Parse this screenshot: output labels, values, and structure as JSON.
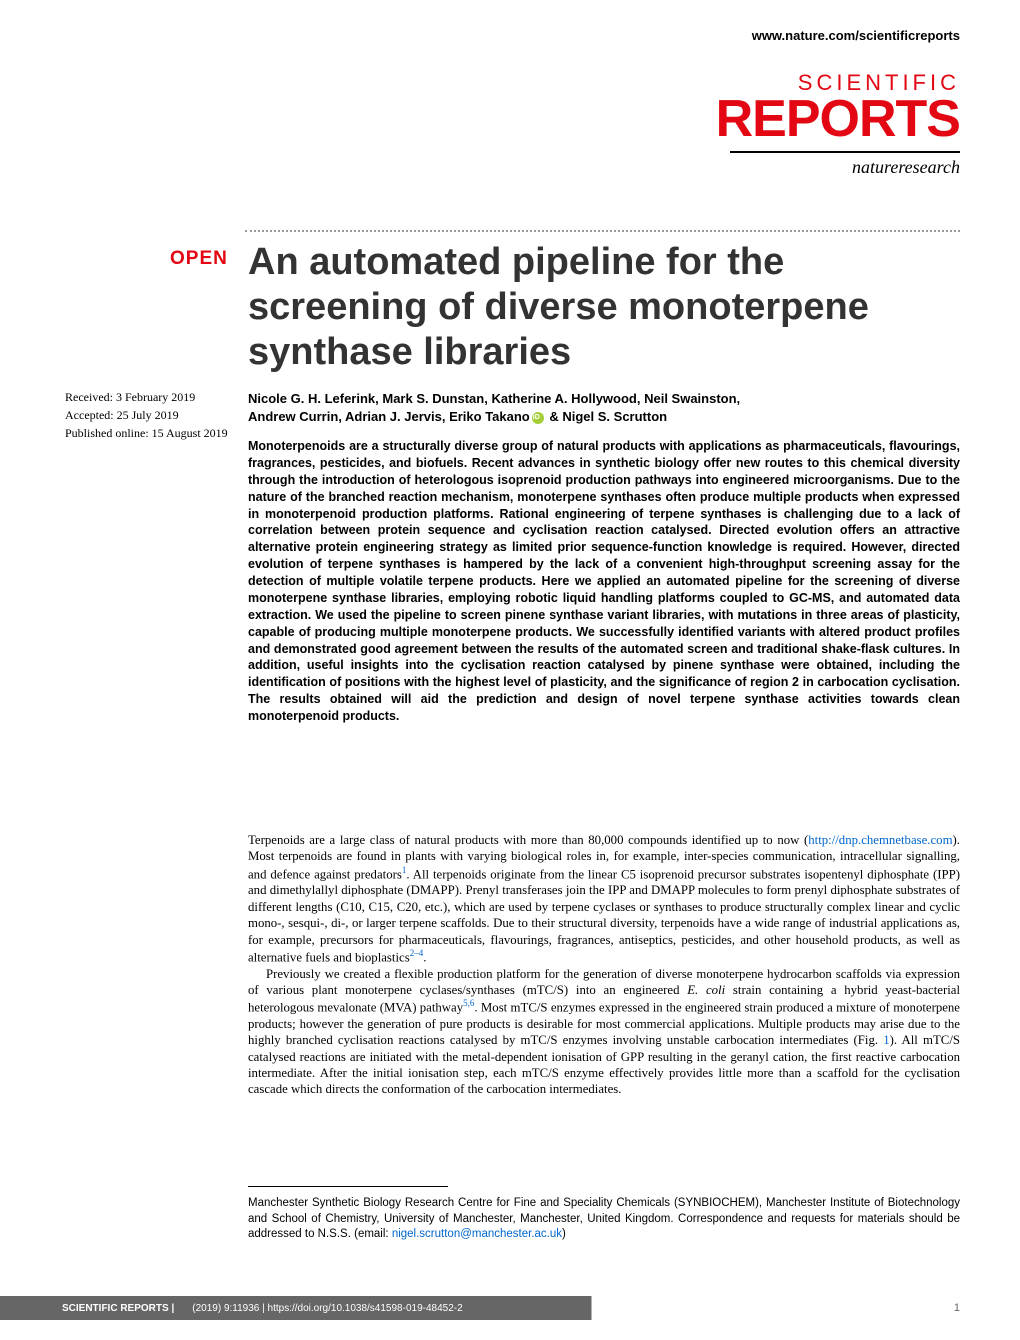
{
  "header": {
    "url": "www.nature.com/scientificreports"
  },
  "journal": {
    "line1": "SCIENTIFIC",
    "line2": "REPORTS",
    "publisher": "natureresearch"
  },
  "badge": "OPEN",
  "title": "An automated pipeline for the screening of diverse monoterpene synthase libraries",
  "dates": {
    "received": "Received: 3 February 2019",
    "accepted": "Accepted: 25 July 2019",
    "published": "Published online: 15 August 2019"
  },
  "authors": {
    "line1": "Nicole G. H. Leferink, Mark S. Dunstan, Katherine A. Hollywood, Neil Swainston,",
    "line2a": "Andrew Currin, Adrian J. Jervis, Eriko Takano",
    "line2b": " & Nigel S. Scrutton"
  },
  "abstract": "Monoterpenoids are a structurally diverse group of natural products with applications as pharmaceuticals, flavourings, fragrances, pesticides, and biofuels. Recent advances in synthetic biology offer new routes to this chemical diversity through the introduction of heterologous isoprenoid production pathways into engineered microorganisms. Due to the nature of the branched reaction mechanism, monoterpene synthases often produce multiple products when expressed in monoterpenoid production platforms. Rational engineering of terpene synthases is challenging due to a lack of correlation between protein sequence and cyclisation reaction catalysed. Directed evolution offers an attractive alternative protein engineering strategy as limited prior sequence-function knowledge is required. However, directed evolution of terpene synthases is hampered by the lack of a convenient high-throughput screening assay for the detection of multiple volatile terpene products. Here we applied an automated pipeline for the screening of diverse monoterpene synthase libraries, employing robotic liquid handling platforms coupled to GC-MS, and automated data extraction. We used the pipeline to screen pinene synthase variant libraries, with mutations in three areas of plasticity, capable of producing multiple monoterpene products. We successfully identified variants with altered product profiles and demonstrated good agreement between the results of the automated screen and traditional shake-flask cultures. In addition, useful insights into the cyclisation reaction catalysed by pinene synthase were obtained, including the identification of positions with the highest level of plasticity, and the significance of region 2 in carbocation cyclisation. The results obtained will aid the prediction and design of novel terpene synthase activities towards clean monoterpenoid products.",
  "body": {
    "p1a": "Terpenoids are a large class of natural products with more than 80,000 compounds identified up to now (",
    "p1link": "http://dnp.chemnetbase.com",
    "p1b": "). Most terpenoids are found in plants with varying biological roles in, for example, inter-species communication, intracellular signalling, and defence against predators",
    "p1sup1": "1",
    "p1c": ". All terpenoids originate from the linear C5 isoprenoid precursor substrates isopentenyl diphosphate (IPP) and dimethylallyl diphosphate (DMAPP). Prenyl transferases join the IPP and DMAPP molecules to form prenyl diphosphate substrates of different lengths (C10, C15, C20, etc.), which are used by terpene cyclases or synthases to produce structurally complex linear and cyclic mono-, sesqui-, di-, or larger terpene scaffolds. Due to their structural diversity, terpenoids have a wide range of industrial applications as, for example, precursors for pharmaceuticals, flavourings, fragrances, antiseptics, pesticides, and other household products, as well as alternative fuels and bioplastics",
    "p1sup2": "2–4",
    "p1d": ".",
    "p2a": "Previously we created a flexible production platform for the generation of diverse monoterpene hydrocarbon scaffolds via expression of various plant monoterpene cyclases/synthases (mTC/S) into an engineered ",
    "p2i": "E. coli",
    "p2b": " strain containing a hybrid yeast-bacterial heterologous mevalonate (MVA) pathway",
    "p2sup1": "5,6",
    "p2c": ". Most mTC/S enzymes expressed in the engineered strain produced a mixture of monoterpene products; however the generation of pure products is desirable for most commercial applications. Multiple products may arise due to the highly branched cyclisation reactions catalysed by mTC/S enzymes involving unstable carbocation intermediates (Fig. ",
    "p2fig": "1",
    "p2d": "). All mTC/S catalysed reactions are initiated with the metal-dependent ionisation of GPP resulting in the geranyl cation, the first reactive carbocation intermediate. After the initial ionisation step, each mTC/S enzyme effectively provides little more than a scaffold for the cyclisation cascade which directs the conformation of the carbocation intermediates."
  },
  "affiliation": {
    "text1": "Manchester Synthetic Biology Research Centre for Fine and Speciality Chemicals (SYNBIOCHEM), Manchester Institute of Biotechnology and School of Chemistry, University of Manchester, Manchester, United Kingdom. Correspondence and requests for materials should be addressed to N.S.S. (email: ",
    "email": "nigel.scrutton@manchester.ac.uk",
    "text2": ")"
  },
  "footer": {
    "journal": "SCIENTIFIC REPORTS |",
    "citation": "(2019) 9:11936 | https://doi.org/10.1038/s41598-019-48452-2",
    "page": "1"
  },
  "colors": {
    "brand_red": "#e30613",
    "link_blue": "#0066cc",
    "orcid_green": "#a6ce39",
    "footer_gray": "#666666"
  }
}
